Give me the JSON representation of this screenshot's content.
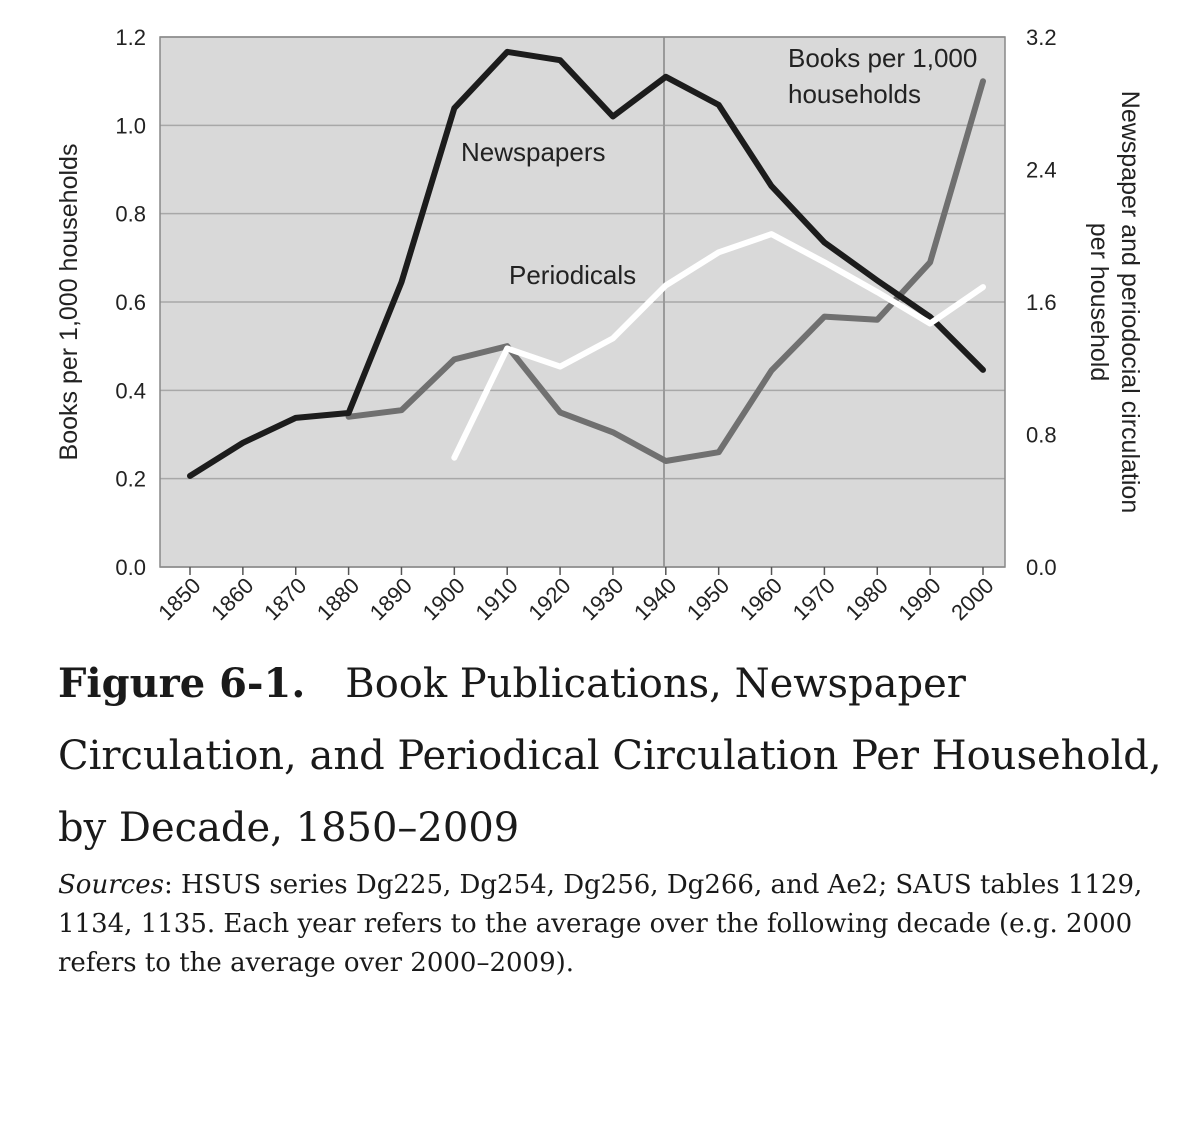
{
  "chart_data": {
    "type": "line",
    "x": [
      1850,
      1860,
      1870,
      1880,
      1890,
      1900,
      1910,
      1920,
      1930,
      1940,
      1950,
      1960,
      1970,
      1980,
      1990,
      2000
    ],
    "x_tick_labels": [
      "1850",
      "1860",
      "1870",
      "1880",
      "1890",
      "1900",
      "1910",
      "1920",
      "1930",
      "1940",
      "1950",
      "1960",
      "1970",
      "1980",
      "1990",
      "2000"
    ],
    "ylabel_left": "Books per 1,000 households",
    "ylabel_right_lines": [
      "Newspaper and periodocial circulation",
      "per household"
    ],
    "ylim_left": [
      0,
      1.2
    ],
    "ylim_right": [
      0,
      3.2
    ],
    "yticks_left": [
      "0.0",
      "0.2",
      "0.4",
      "0.6",
      "0.8",
      "1.0",
      "1.2"
    ],
    "yticks_right": [
      "0.0",
      "0.8",
      "1.6",
      "2.4",
      "3.2"
    ],
    "grid": true,
    "series": [
      {
        "name": "Books per 1,000 households",
        "axis": "left",
        "color": "#707070",
        "x": [
          1880,
          1890,
          1900,
          1910,
          1920,
          1930,
          1940,
          1950,
          1960,
          1970,
          1980,
          1990,
          2000
        ],
        "values": [
          0.34,
          0.355,
          0.47,
          0.5,
          0.35,
          0.305,
          0.24,
          0.26,
          0.445,
          0.567,
          0.56,
          0.69,
          1.1
        ]
      },
      {
        "name": "Newspapers",
        "axis": "right",
        "color": "#1c1c1c",
        "x": [
          1850,
          1860,
          1870,
          1880,
          1890,
          1900,
          1910,
          1920,
          1930,
          1940,
          1950,
          1960,
          1970,
          1980,
          1990,
          2000
        ],
        "values": [
          0.55,
          0.75,
          0.9,
          0.93,
          1.72,
          2.77,
          3.11,
          3.06,
          2.72,
          2.96,
          2.79,
          2.3,
          1.96,
          1.73,
          1.51,
          1.19
        ]
      },
      {
        "name": "Periodicals",
        "axis": "right",
        "color": "#ffffff",
        "x": [
          1900,
          1910,
          1920,
          1930,
          1940,
          1950,
          1960,
          1970,
          1980,
          1990,
          2000
        ],
        "values": [
          0.66,
          1.32,
          1.21,
          1.38,
          1.7,
          1.9,
          2.01,
          1.84,
          1.66,
          1.47,
          1.69
        ]
      }
    ],
    "annotations": {
      "newspapers": "Newspapers",
      "periodicals": "Periodicals",
      "books_line1": "Books per 1,000",
      "books_line2": "households"
    }
  },
  "caption": {
    "figure_number": "Figure 6-1.",
    "title": "Book Publications, Newspaper Circulation, and Periodical Circulation Per Household, by Decade, 1850–2009",
    "sources_lead": "Sources",
    "sources_text": ": HSUS series Dg225, Dg254, Dg256, Dg266, and Ae2; SAUS tables 1129, 1134, 1135. Each year refers to the average over the following decade (e.g. 2000 refers to the average over 2000–2009)."
  }
}
